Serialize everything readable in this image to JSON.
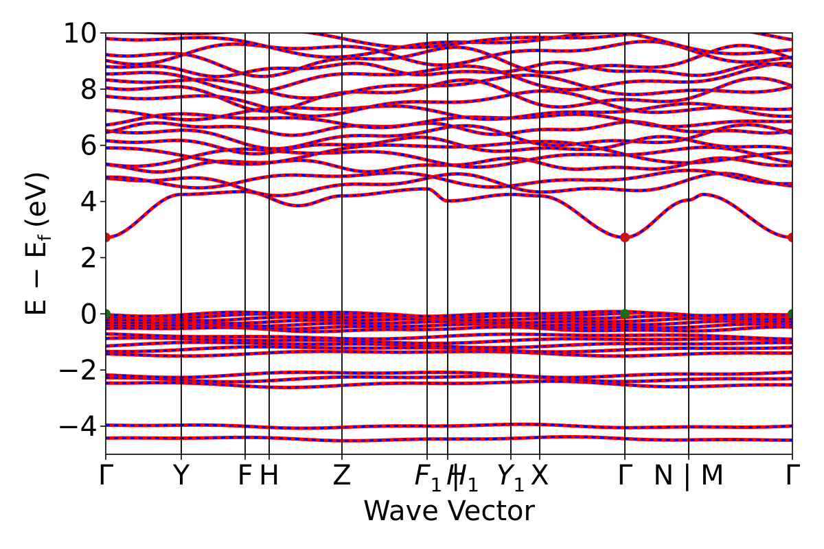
{
  "chart_data": {
    "type": "line",
    "title": "",
    "xlabel": "Wave Vector",
    "ylabel": "E − E_f (eV)",
    "ylabel_parts": {
      "main": "E − E",
      "sub": "f",
      "unit": "(eV)"
    },
    "ylim": [
      -5,
      10
    ],
    "yticks": [
      -4,
      -2,
      0,
      2,
      4,
      6,
      8,
      10
    ],
    "ytick_labels": [
      "−4",
      "−2",
      "0",
      "2",
      "4",
      "6",
      "8",
      "10"
    ],
    "xlim": [
      0,
      100
    ],
    "kpoints": [
      {
        "label": "Γ",
        "x": 0
      },
      {
        "label": "Y",
        "x": 11
      },
      {
        "label": "F",
        "x": 20.3
      },
      {
        "label": "H",
        "x": 23.8
      },
      {
        "label": "Z",
        "x": 34.4
      },
      {
        "label": "F",
        "sub": "1",
        "x": 46.8,
        "italic": true
      },
      {
        "label": "H",
        "sub": "1",
        "x": 49.8,
        "italic": true
      },
      {
        "label": "Y",
        "sub": "1",
        "x": 59.0,
        "italic": true
      },
      {
        "label": "X",
        "x": 63.2
      },
      {
        "label": "Γ",
        "x": 75.6
      },
      {
        "label": "N",
        "x": 84.9
      },
      {
        "label": "M",
        "x": 84.9
      },
      {
        "label": "Γ",
        "x": 100
      }
    ],
    "tick_text": [
      {
        "text": "Γ",
        "x": 0
      },
      {
        "text": "Y",
        "x": 11
      },
      {
        "text": "F",
        "x": 20.3
      },
      {
        "text": "H",
        "x": 23.8
      },
      {
        "text": "Z",
        "x": 34.4
      },
      {
        "text": "F",
        "sub": "1",
        "suffix": " | ",
        "x": 48.3,
        "italic": true
      },
      {
        "text": "H",
        "sub": "1",
        "x": 52.0,
        "italic": true
      },
      {
        "text": "Y",
        "sub": "1",
        "x": 59.0,
        "italic": true
      },
      {
        "text": "X",
        "x": 63.2
      },
      {
        "text": "Γ",
        "x": 75.6
      },
      {
        "text": "N | M",
        "x": 84.9
      },
      {
        "text": "Γ",
        "x": 100
      }
    ],
    "gap_markers": {
      "cbm": {
        "energy": 2.72,
        "x": [
          0,
          75.6,
          100
        ],
        "color": "#cc1111"
      },
      "vbm": {
        "energy": 0.0,
        "x": [
          0,
          75.6,
          100
        ],
        "color": "#1a6b1a"
      }
    },
    "band_colors": {
      "spin_up": "#0000ff",
      "spin_down": "#ff0000"
    },
    "core_bands": [
      -4.45,
      -4.0
    ],
    "semicore_bands": [
      -2.5,
      -2.3,
      -2.15
    ],
    "mid_bands": [
      -1.4,
      -1.25,
      -1.1,
      -0.95,
      -0.8
    ],
    "valence_top_bands": [
      -0.55,
      -0.45,
      -0.35,
      -0.25,
      -0.15,
      -0.05,
      0.0
    ],
    "lowest_conduction": [
      {
        "x": 0,
        "e": 2.72
      },
      {
        "x": 11,
        "e": 4.25
      },
      {
        "x": 20.3,
        "e": 4.35
      },
      {
        "x": 28,
        "e": 3.85
      },
      {
        "x": 34.4,
        "e": 4.2
      },
      {
        "x": 46.8,
        "e": 4.45
      },
      {
        "x": 49.8,
        "e": 4.02
      },
      {
        "x": 59.0,
        "e": 4.25
      },
      {
        "x": 63.2,
        "e": 4.2
      },
      {
        "x": 75.6,
        "e": 2.72
      },
      {
        "x": 84.9,
        "e": 4.05
      },
      {
        "x": 87,
        "e": 4.25
      },
      {
        "x": 100,
        "e": 2.72
      }
    ],
    "upper_conduction_base": [
      4.6,
      4.8,
      5.3,
      5.6,
      5.8,
      6.0,
      6.3,
      6.6,
      6.9,
      7.2,
      7.5,
      7.8,
      8.1,
      8.4,
      8.7,
      9.0,
      9.3,
      9.6,
      9.85
    ]
  }
}
